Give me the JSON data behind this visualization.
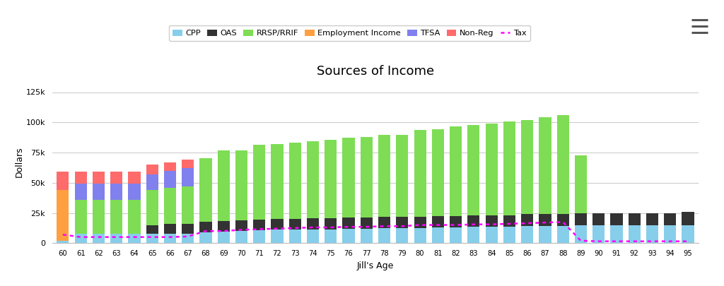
{
  "title": "Sources of Income",
  "xlabel": "Jill's Age",
  "ylabel": "Dollars",
  "ages": [
    60,
    61,
    62,
    63,
    64,
    65,
    66,
    67,
    68,
    69,
    70,
    71,
    72,
    73,
    74,
    75,
    76,
    77,
    78,
    79,
    80,
    81,
    82,
    83,
    84,
    85,
    86,
    87,
    88,
    89,
    90,
    91,
    92,
    93,
    94,
    95
  ],
  "cpp": [
    2000,
    8000,
    8000,
    8000,
    8000,
    8000,
    8000,
    8000,
    9000,
    9500,
    10000,
    10500,
    11000,
    11000,
    11500,
    11500,
    12000,
    12000,
    12500,
    12500,
    12500,
    13000,
    13000,
    13500,
    13500,
    13500,
    14000,
    14000,
    14000,
    14500,
    14500,
    14500,
    14500,
    14500,
    14500,
    15000
  ],
  "oas": [
    0,
    0,
    0,
    0,
    0,
    7000,
    8000,
    8000,
    8500,
    9000,
    9000,
    9000,
    9000,
    9000,
    9000,
    9000,
    9000,
    9000,
    9000,
    9000,
    9000,
    9500,
    9500,
    9500,
    9500,
    9500,
    10000,
    10000,
    10000,
    10000,
    10000,
    10500,
    10500,
    10500,
    10500,
    11000
  ],
  "rrsp": [
    0,
    28000,
    28000,
    28000,
    28000,
    29000,
    30000,
    31000,
    53000,
    58000,
    58000,
    62000,
    62000,
    63000,
    64000,
    65000,
    66000,
    67000,
    68000,
    68000,
    72000,
    72000,
    74000,
    75000,
    76000,
    78000,
    78000,
    80000,
    82000,
    48000,
    0,
    0,
    0,
    0,
    0,
    0
  ],
  "employment": [
    42000,
    0,
    0,
    0,
    0,
    0,
    0,
    0,
    0,
    0,
    0,
    0,
    0,
    0,
    0,
    0,
    0,
    0,
    0,
    0,
    0,
    0,
    0,
    0,
    0,
    0,
    0,
    0,
    0,
    0,
    0,
    0,
    0,
    0,
    0,
    0
  ],
  "tfsa": [
    0,
    13000,
    13000,
    13000,
    13000,
    13000,
    14000,
    15000,
    0,
    0,
    0,
    0,
    0,
    0,
    0,
    0,
    0,
    0,
    0,
    0,
    0,
    0,
    0,
    0,
    0,
    0,
    0,
    0,
    0,
    0,
    0,
    0,
    0,
    0,
    0,
    0
  ],
  "nonreg": [
    15000,
    10000,
    10000,
    10000,
    10000,
    8000,
    7000,
    7000,
    0,
    0,
    0,
    0,
    0,
    0,
    0,
    0,
    0,
    0,
    0,
    0,
    0,
    0,
    0,
    0,
    0,
    0,
    0,
    0,
    0,
    0,
    0,
    0,
    0,
    0,
    0,
    0
  ],
  "tax": [
    7000,
    5000,
    5000,
    5000,
    5000,
    5000,
    5000,
    5500,
    10000,
    10000,
    11000,
    11500,
    12000,
    12500,
    13000,
    13000,
    13500,
    13500,
    14000,
    14000,
    15000,
    15000,
    15000,
    15500,
    15500,
    16000,
    16500,
    17000,
    17500,
    2000,
    1500,
    1500,
    1500,
    1500,
    1500,
    1500
  ],
  "colors": {
    "cpp": "#87CEEB",
    "oas": "#333333",
    "rrsp": "#7EDD55",
    "employment": "#FFA040",
    "tfsa": "#8080EE",
    "nonreg": "#FF6B6B",
    "tax_line": "#FF00FF"
  },
  "ylim": [
    0,
    135000
  ],
  "yticks": [
    0,
    25000,
    50000,
    75000,
    100000,
    125000
  ],
  "ytick_labels": [
    "0",
    "25k",
    "50k",
    "75k",
    "100k",
    "125k"
  ],
  "background": "#ffffff",
  "plot_bg": "#ffffff",
  "grid_color": "#cccccc"
}
